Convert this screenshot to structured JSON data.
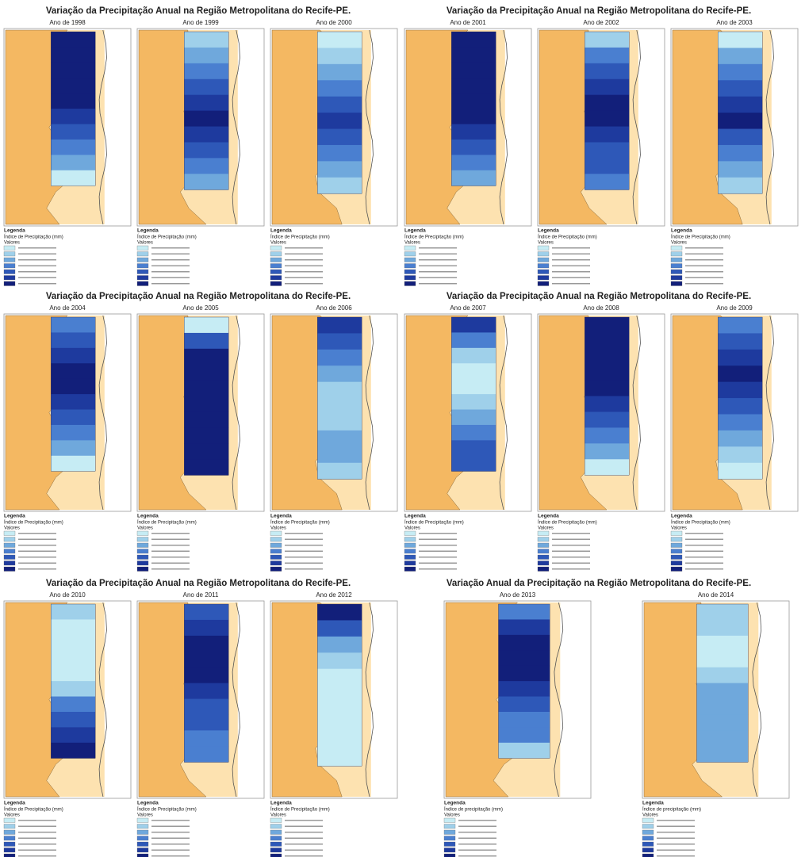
{
  "groups": [
    {
      "title": "Variação da Precipitação Anual na Região Metropolitana do Recife-PE.",
      "maps": [
        {
          "year": "Ano de 1998",
          "legend": "Legenda",
          "index_label": "Índice de Precipitação (mm)",
          "values_label": "Valores"
        },
        {
          "year": "Ano de 1999",
          "legend": "Legenda",
          "index_label": "Índice de Precipitação (mm)",
          "values_label": "Valores"
        },
        {
          "year": "Ano de 2000",
          "legend": "Legenda",
          "index_label": "Índice de Precipitação (mm)",
          "values_label": "Valores"
        }
      ]
    },
    {
      "title": "Variação da Precipitação Anual na Região Metropolitana do Recife-PE.",
      "maps": [
        {
          "year": "Ano de 2001",
          "legend": "Legenda",
          "index_label": "Índice de Precipitação (mm)",
          "values_label": "Valores"
        },
        {
          "year": "Ano de 2002",
          "legend": "Legenda",
          "index_label": "Índice de Precipitação (mm)",
          "values_label": "Valores"
        },
        {
          "year": "Ano de 2003",
          "legend": "Legenda",
          "index_label": "Índice de Precipitação (mm)",
          "values_label": "Valores"
        }
      ]
    },
    {
      "title": "Variação da Precipitação Anual na Região Metropolitana do Recife-PE.",
      "maps": [
        {
          "year": "Ano de 2004",
          "legend": "Legenda",
          "index_label": "Índice de Precipitação (mm)",
          "values_label": "Valores"
        },
        {
          "year": "Ano de 2005",
          "legend": "Legenda",
          "index_label": "Índice de Precipitação (mm)",
          "values_label": "Valores"
        },
        {
          "year": "Ano de 2006",
          "legend": "Legenda",
          "index_label": "Índice de Precipitação (mm)",
          "values_label": "Valores"
        }
      ]
    },
    {
      "title": "Variação da Precipitação Anual na Região Metropolitana do Recife-PE.",
      "maps": [
        {
          "year": "Ano de 2007",
          "legend": "Legenda",
          "index_label": "Índice de Precipitação (mm)",
          "values_label": "Valores"
        },
        {
          "year": "Ano de 2008",
          "legend": "Legenda",
          "index_label": "Índice de Precipitação (mm)",
          "values_label": "Valores"
        },
        {
          "year": "Ano de 2009",
          "legend": "Legenda",
          "index_label": "Índice de Precipitação (mm)",
          "values_label": "Valores"
        }
      ]
    },
    {
      "title": "Variação da Precipitação Anual na Região Metropolitana do Recife-PE.",
      "maps": [
        {
          "year": "Ano de 2010",
          "legend": "Legenda",
          "index_label": "Índice de Precipitação (mm)",
          "values_label": "Valores"
        },
        {
          "year": "Ano de 2011",
          "legend": "Legenda",
          "index_label": "Índice de Precipitação (mm)",
          "values_label": "Valores"
        },
        {
          "year": "Ano de 2012",
          "legend": "Legenda",
          "index_label": "Índice de Precipitação (mm)",
          "values_label": "Valores"
        }
      ]
    },
    {
      "title": "Variação Anual da Precipitação  na Região Metropolitana do Recife-PE.",
      "maps": [
        {
          "year": "Ano de 2013",
          "legend": "Legenda",
          "index_label": "Índice de precipitação (mm)",
          "values_label": "Valores"
        },
        {
          "year": "Ano de 2014",
          "legend": "Legenda",
          "index_label": "Índice de precipitação (mm)",
          "values_label": "Valores"
        }
      ]
    }
  ]
}
